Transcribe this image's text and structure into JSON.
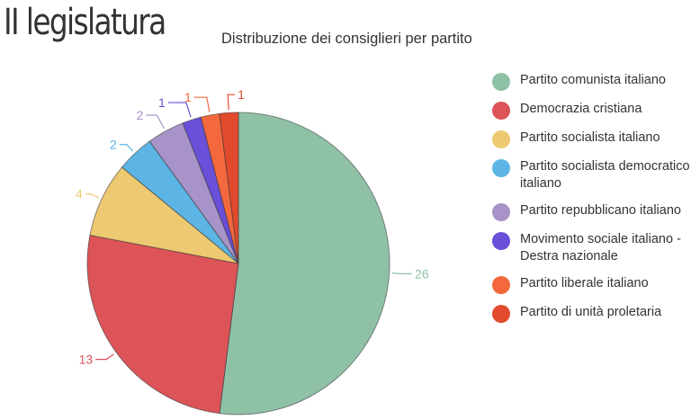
{
  "header": {
    "title": "II legislatura",
    "subtitle": "Distribuzione dei consiglieri per partito"
  },
  "chart_data": {
    "type": "pie",
    "title": "II legislatura",
    "subtitle": "Distribuzione dei consiglieri per partito",
    "legend_position": "right",
    "slices": [
      {
        "label": "Partito comunista italiano",
        "value": 26,
        "color": "#8fc1a7"
      },
      {
        "label": "Democrazia cristiana",
        "value": 13,
        "color": "#dc5358"
      },
      {
        "label": "Partito socialista italiano",
        "value": 4,
        "color": "#edc971"
      },
      {
        "label": "Partito socialista democratico italiano",
        "value": 2,
        "color": "#5cb5e4"
      },
      {
        "label": "Partito repubblicano italiano",
        "value": 2,
        "color": "#a793c7"
      },
      {
        "label": "Movimento sociale italiano - Destra nazionale",
        "value": 1,
        "color": "#6a4fd8"
      },
      {
        "label": "Partito liberale italiano",
        "value": 1,
        "color": "#f4683e"
      },
      {
        "label": "Partito di unità proletaria",
        "value": 1,
        "color": "#e14a2d"
      }
    ]
  }
}
